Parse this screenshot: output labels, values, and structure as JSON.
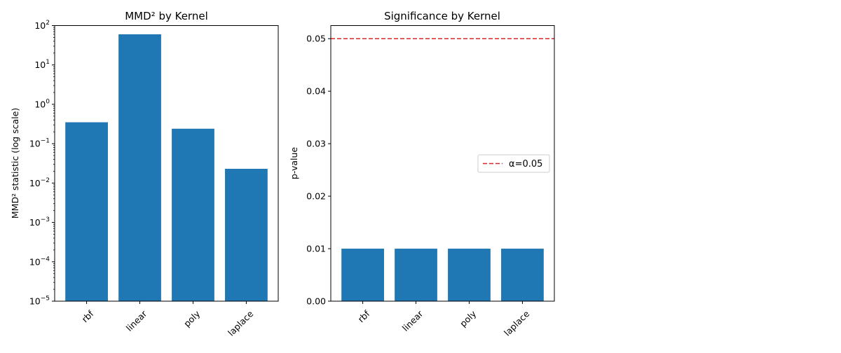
{
  "chart_data": [
    {
      "type": "bar",
      "title": "MMD² by Kernel",
      "xlabel": "",
      "ylabel": "MMD² statistic (log scale)",
      "yscale": "log",
      "ylim": [
        1e-05,
        100
      ],
      "y_ticks": [
        {
          "value": 1e-05,
          "base": "10",
          "exp": "−5"
        },
        {
          "value": 0.0001,
          "base": "10",
          "exp": "−4"
        },
        {
          "value": 0.001,
          "base": "10",
          "exp": "−3"
        },
        {
          "value": 0.01,
          "base": "10",
          "exp": "−2"
        },
        {
          "value": 0.1,
          "base": "10",
          "exp": "−1"
        },
        {
          "value": 1,
          "base": "10",
          "exp": "0"
        },
        {
          "value": 10,
          "base": "10",
          "exp": "1"
        },
        {
          "value": 100,
          "base": "10",
          "exp": "2"
        }
      ],
      "categories": [
        "rbf",
        "linear",
        "poly",
        "laplace"
      ],
      "values": [
        0.35,
        60,
        0.24,
        0.023
      ],
      "bar_color": "#1f77b4",
      "grid": false
    },
    {
      "type": "bar",
      "title": "Significance by Kernel",
      "xlabel": "",
      "ylabel": "p-value",
      "ylim": [
        0,
        0.0525
      ],
      "y_ticks": [
        {
          "value": 0,
          "label": "0.00"
        },
        {
          "value": 0.01,
          "label": "0.01"
        },
        {
          "value": 0.02,
          "label": "0.02"
        },
        {
          "value": 0.03,
          "label": "0.03"
        },
        {
          "value": 0.04,
          "label": "0.04"
        },
        {
          "value": 0.05,
          "label": "0.05"
        }
      ],
      "categories": [
        "rbf",
        "linear",
        "poly",
        "laplace"
      ],
      "values": [
        0.01,
        0.01,
        0.01,
        0.01
      ],
      "bar_color": "#1f77b4",
      "reference_line": {
        "value": 0.05,
        "label": "α=0.05",
        "color": "#d62728",
        "style": "dashed"
      },
      "legend": {
        "placement": "center-right"
      },
      "grid": false
    }
  ]
}
